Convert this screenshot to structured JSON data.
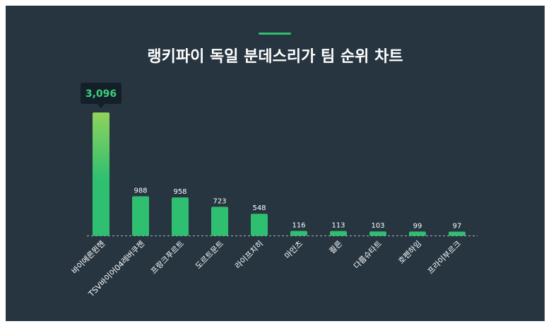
{
  "page": {
    "title": "랭키파이 독일 분데스리가 팀 순위 차트"
  },
  "colors": {
    "background": "#263540",
    "accent": "#2fbf71",
    "bar_top_highlight": "#8fd35c",
    "bar": "#2fbf71",
    "tooltip_bg": "#13202a",
    "tooltip_text": "#3ecf7a",
    "label_text": "#ffffff",
    "baseline": "#aab4bb"
  },
  "chart_data": {
    "type": "bar",
    "title": "랭키파이 독일 분데스리가 팀 순위 차트",
    "categories": [
      "바이에른뮌헨",
      "TSV바이어04레버쿠젠",
      "프랑크푸르트",
      "도르트문트",
      "라이프치히",
      "마인츠",
      "쾰른",
      "다름슈타트",
      "호펜하임",
      "프라이부르크"
    ],
    "values": [
      3096,
      988,
      958,
      723,
      548,
      116,
      113,
      103,
      99,
      97
    ],
    "value_labels": [
      "3,096",
      "988",
      "958",
      "723",
      "548",
      "116",
      "113",
      "103",
      "99",
      "97"
    ],
    "highlight": {
      "index": 0,
      "label": "3,096"
    },
    "ylim": [
      0,
      3096
    ],
    "grid": false,
    "legend": "none"
  }
}
